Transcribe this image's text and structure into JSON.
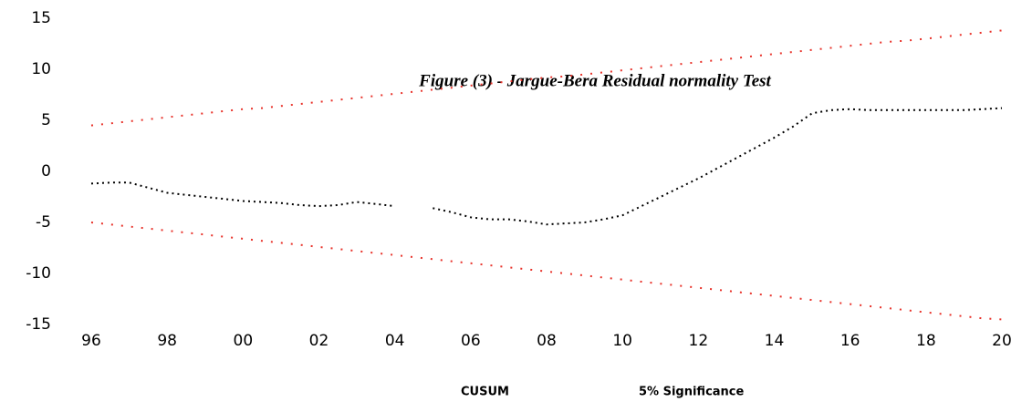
{
  "chart_data": {
    "type": "line",
    "title": "Figure (3) - Jargue-Bera Residual normality Test",
    "x": [
      1996,
      1996.5,
      1997,
      1997.5,
      1998,
      1998.5,
      1999,
      1999.5,
      2000,
      2000.5,
      2001,
      2001.5,
      2002,
      2002.5,
      2003,
      2003.5,
      2004,
      2004.5,
      2005,
      2005.5,
      2006,
      2006.5,
      2007,
      2007.5,
      2008,
      2008.5,
      2009,
      2009.5,
      2010,
      2010.5,
      2011,
      2011.5,
      2012,
      2012.5,
      2013,
      2013.5,
      2014,
      2014.5,
      2015,
      2015.5,
      2016,
      2016.5,
      2017,
      2017.5,
      2018,
      2018.5,
      2019,
      2019.5,
      2020
    ],
    "series": [
      {
        "name": "CUSUM",
        "color": "#000000",
        "values": [
          -1.2,
          -1.1,
          -1.1,
          -1.6,
          -2.1,
          -2.3,
          -2.5,
          -2.7,
          -2.9,
          -3.0,
          -3.1,
          -3.3,
          -3.4,
          -3.3,
          -3.0,
          -3.2,
          -3.4,
          null,
          -3.6,
          -4.0,
          -4.5,
          -4.7,
          -4.7,
          -4.9,
          -5.2,
          -5.1,
          -5.0,
          -4.7,
          -4.3,
          -3.4,
          -2.5,
          -1.6,
          -0.7,
          0.3,
          1.3,
          2.3,
          3.3,
          4.4,
          5.7,
          6.0,
          6.1,
          6.0,
          6.0,
          6.0,
          6.0,
          6.0,
          6.0,
          6.1,
          6.2
        ]
      },
      {
        "name": "5% Significance",
        "color": "#e8322a",
        "values": [
          4.5,
          4.7,
          4.9,
          5.1,
          5.3,
          5.5,
          5.7,
          5.9,
          6.1,
          6.2,
          6.4,
          6.6,
          6.8,
          7.0,
          7.2,
          7.4,
          7.6,
          7.8,
          8.0,
          8.2,
          8.4,
          8.6,
          8.8,
          9.0,
          9.2,
          9.3,
          9.5,
          9.7,
          9.9,
          10.1,
          10.3,
          10.5,
          10.7,
          10.9,
          11.1,
          11.3,
          11.5,
          11.7,
          11.9,
          12.1,
          12.3,
          12.5,
          12.7,
          12.8,
          13.0,
          13.2,
          13.4,
          13.6,
          13.8
        ]
      },
      {
        "color": "#e8322a",
        "values": [
          -5.0,
          -5.2,
          -5.4,
          -5.6,
          -5.8,
          -6.0,
          -6.2,
          -6.4,
          -6.6,
          -6.8,
          -7.0,
          -7.2,
          -7.4,
          -7.6,
          -7.8,
          -8.0,
          -8.2,
          -8.4,
          -8.6,
          -8.8,
          -9.0,
          -9.2,
          -9.4,
          -9.6,
          -9.8,
          -10.0,
          -10.2,
          -10.4,
          -10.6,
          -10.8,
          -11.0,
          -11.2,
          -11.4,
          -11.6,
          -11.8,
          -12.0,
          -12.2,
          -12.4,
          -12.6,
          -12.8,
          -13.0,
          -13.2,
          -13.4,
          -13.6,
          -13.8,
          -14.0,
          -14.2,
          -14.4,
          -14.5
        ]
      }
    ],
    "xlim": [
      1996,
      2020
    ],
    "xticks": [
      {
        "value": 1996,
        "label": "96"
      },
      {
        "value": 1998,
        "label": "98"
      },
      {
        "value": 2000,
        "label": "00"
      },
      {
        "value": 2002,
        "label": "02"
      },
      {
        "value": 2004,
        "label": "04"
      },
      {
        "value": 2006,
        "label": "06"
      },
      {
        "value": 2008,
        "label": "08"
      },
      {
        "value": 2010,
        "label": "10"
      },
      {
        "value": 2012,
        "label": "12"
      },
      {
        "value": 2014,
        "label": "14"
      },
      {
        "value": 2016,
        "label": "16"
      },
      {
        "value": 2018,
        "label": "18"
      },
      {
        "value": 2020,
        "label": "20"
      }
    ],
    "ylim": [
      -15,
      15
    ],
    "yticks": [
      -15,
      -10,
      -5,
      0,
      5,
      10,
      15
    ],
    "grid": false
  }
}
